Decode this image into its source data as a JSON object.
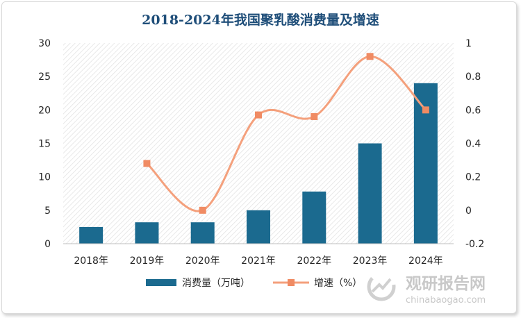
{
  "chart_data": {
    "type": "bar",
    "title": "2018-2024年我国聚乳酸消费量及增速",
    "categories": [
      "2018年",
      "2019年",
      "2020年",
      "2021年",
      "2022年",
      "2023年",
      "2024年"
    ],
    "series": [
      {
        "name": "消费量（万吨）",
        "type": "bar",
        "axis": "left",
        "color": "#1b6a8f",
        "values": [
          2.5,
          3.2,
          3.2,
          5.0,
          7.8,
          15.0,
          24.0
        ]
      },
      {
        "name": "增速（%）",
        "type": "line",
        "axis": "right",
        "color": "#f4a07c",
        "marker_color": "#f08b63",
        "values": [
          null,
          0.28,
          0.0,
          0.57,
          0.56,
          0.92,
          0.6
        ]
      }
    ],
    "y_left": {
      "min": 0,
      "max": 30,
      "ticks": [
        "30",
        "25",
        "20",
        "15",
        "10",
        "5",
        "0"
      ]
    },
    "y_right": {
      "min": -0.2,
      "max": 1,
      "ticks": [
        "1",
        "0.8",
        "0.6",
        "0.4",
        "0.2",
        "0",
        "-0.2"
      ]
    },
    "legend_position": "bottom"
  },
  "watermark": {
    "text_cn": "观研报告网",
    "text_en": "chinabaogao.com"
  }
}
